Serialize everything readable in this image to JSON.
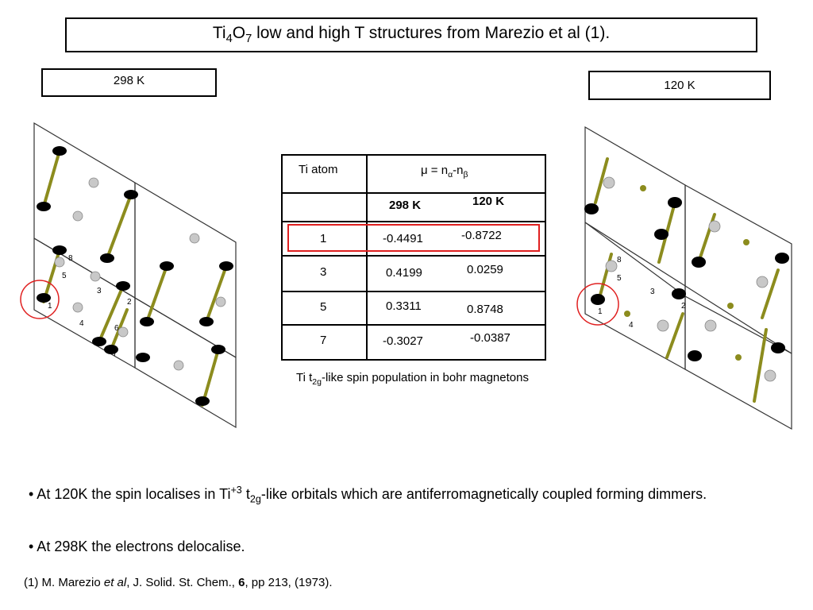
{
  "title": {
    "pre": "Ti",
    "sub1": "4",
    "mid": "O",
    "sub2": "7",
    "post": " low and high T structures from Marezio et al (1)."
  },
  "labels": {
    "left": "298 K",
    "right": "120 K"
  },
  "table": {
    "header_col1": "Ti atom",
    "header_col2_pre": "μ = n",
    "header_col2_sub1": "α",
    "header_col2_mid": "-n",
    "header_col2_sub2": "β",
    "subheader_298": "298 K",
    "subheader_120": "120 K",
    "rows": [
      {
        "atom": "1",
        "v298": "-0.4491",
        "v120": "-0.8722"
      },
      {
        "atom": "3",
        "v298": "0.4199",
        "v120": "0.0259"
      },
      {
        "atom": "5",
        "v298": "0.3311",
        "v120": "0.8748"
      },
      {
        "atom": "7",
        "v298": "-0.3027",
        "v120": "-0.0387"
      }
    ]
  },
  "caption": {
    "pre": "Ti t",
    "sub": "2g",
    "post": "-like spin population in bohr magnetons"
  },
  "atom_labels_left": [
    "8",
    "5",
    "3",
    "2",
    "1",
    "4",
    "6",
    "7"
  ],
  "atom_labels_right": [
    "8",
    "5",
    "3",
    "2",
    "1",
    "4"
  ],
  "bullets": {
    "b1_pre": "• At 120K the spin localises in Ti",
    "b1_sup": "+3",
    "b1_mid": " t",
    "b1_sub": "2g",
    "b1_post": "-like orbitals which are antiferromagnetically coupled forming dimmers.",
    "b2": "• At 298K the electrons delocalise."
  },
  "reference": {
    "pre": "(1) M. Marezio ",
    "italic": "et al",
    "mid": ", J. Solid. St. Chem., ",
    "bold": "6",
    "post": ", pp 213, (1973)."
  },
  "colors": {
    "highlight": "#e02020",
    "bond": "#8c8c1e",
    "atom_dark": "#000000",
    "atom_light": "#c8c8c8"
  }
}
